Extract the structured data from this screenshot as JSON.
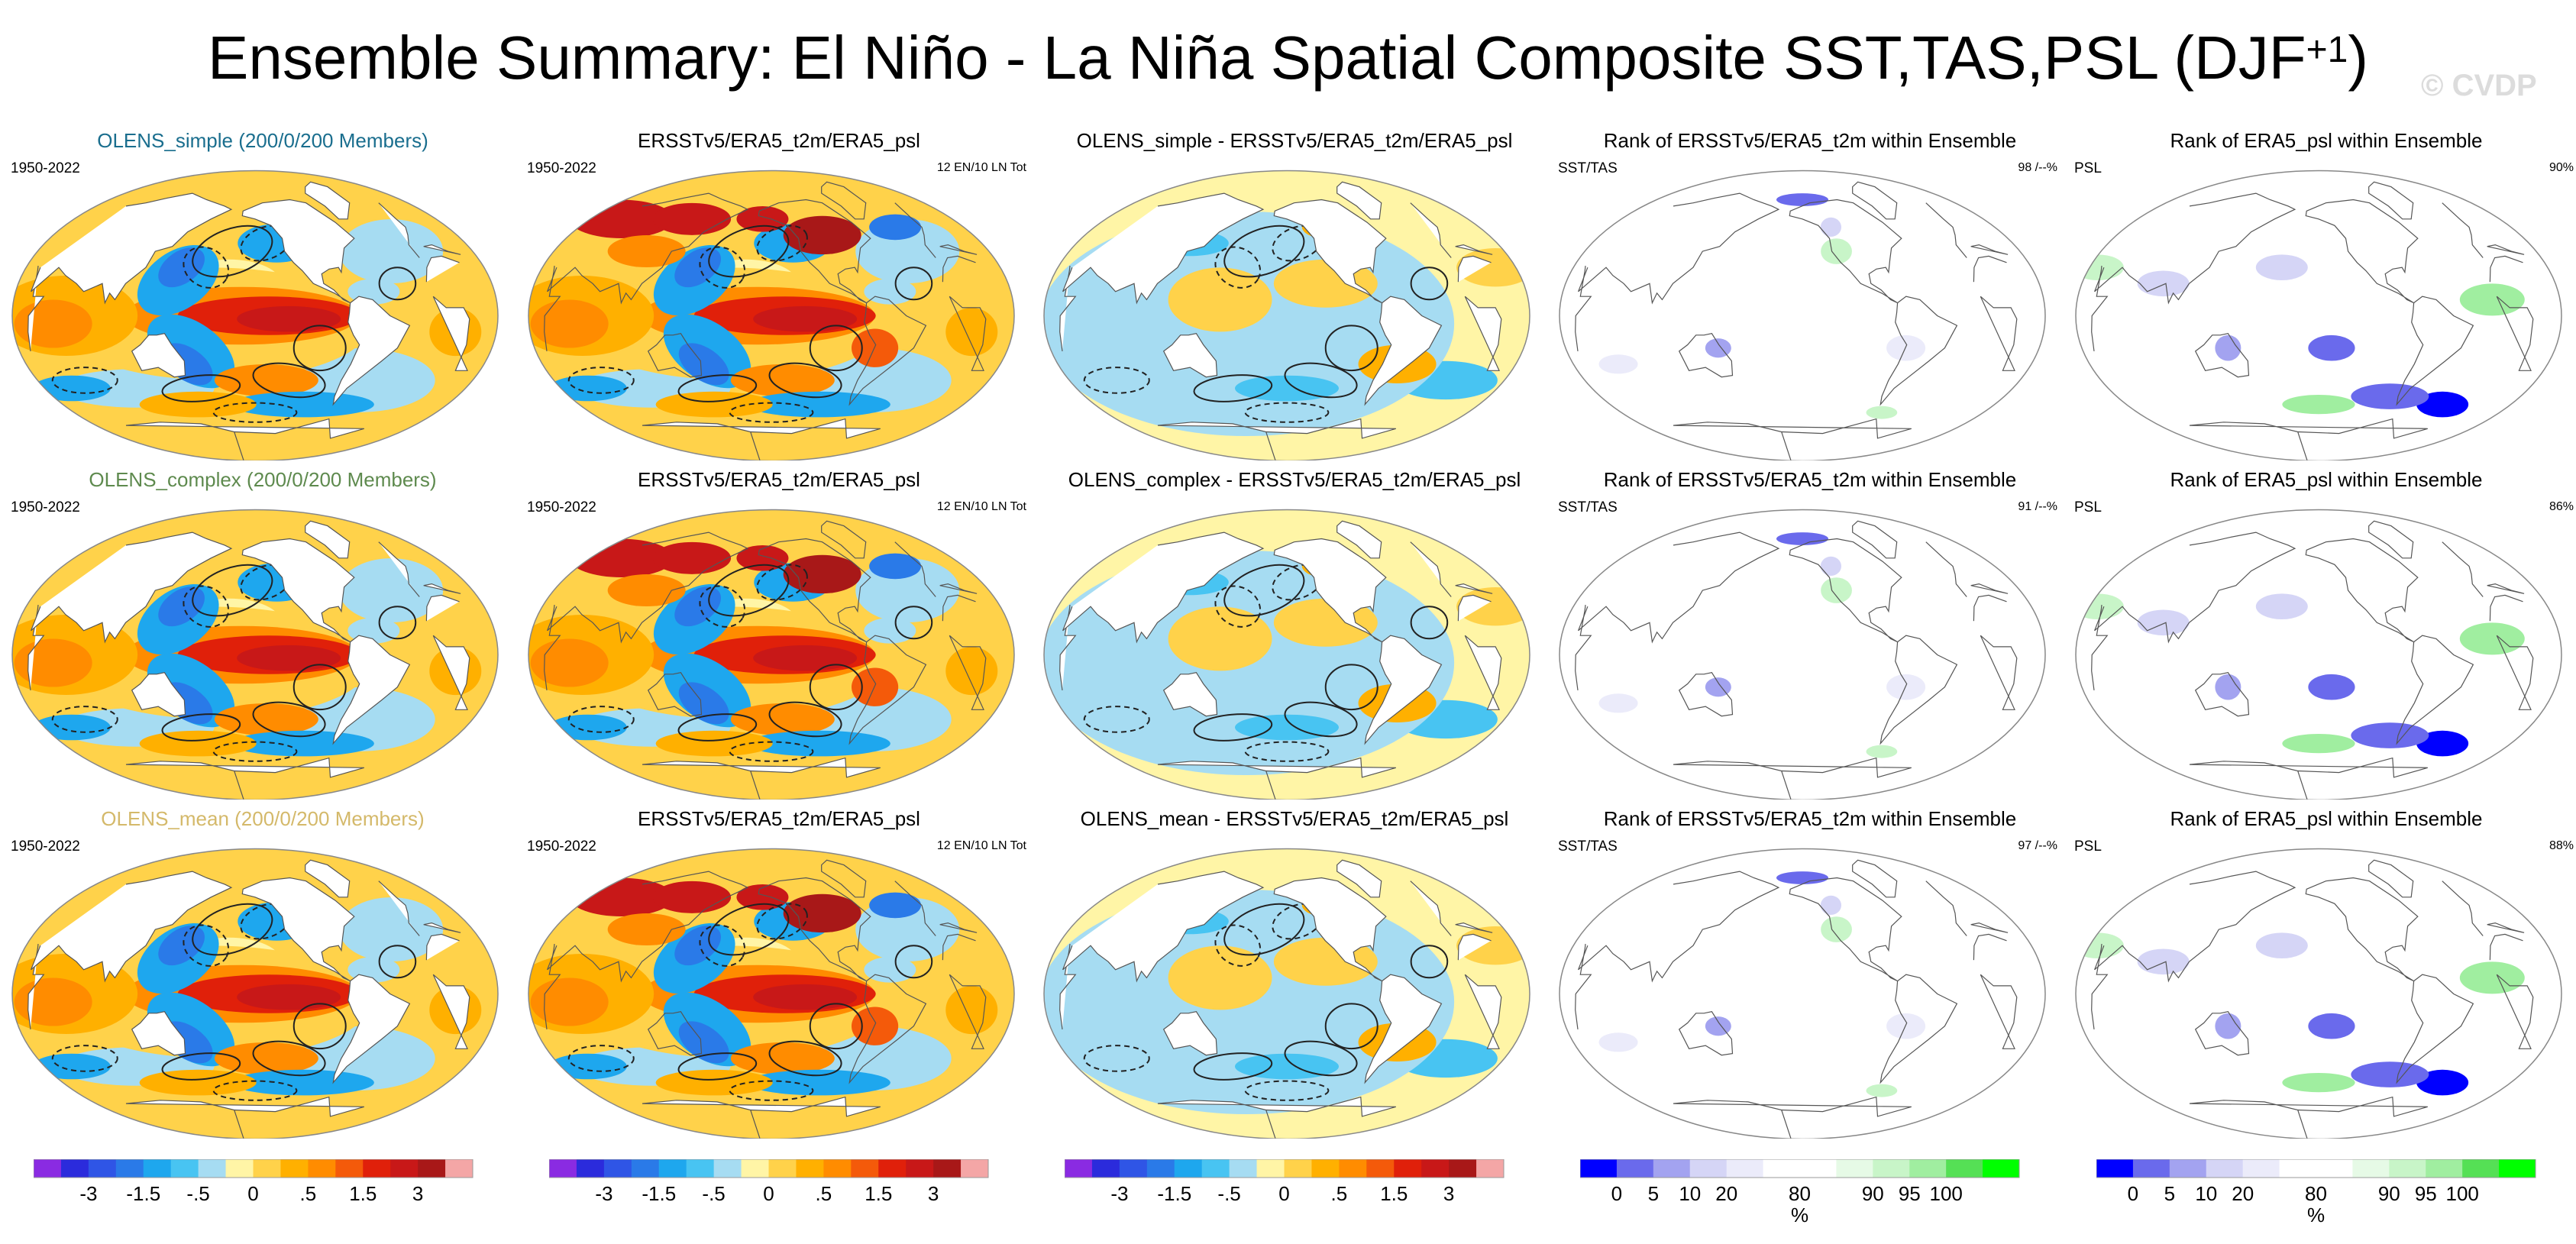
{
  "title_main": "Ensemble Summary: El Niño - La Niña Spatial Composite SST,TAS,PSL (DJF",
  "title_sup": "+1",
  "title_close": ")",
  "watermark": "© CVDP",
  "panels": [
    {
      "title": "OLENS_simple (200/0/200 Members)",
      "title_color": "#1a6e8e",
      "year": "1950-2022",
      "stat": "",
      "kind": "model"
    },
    {
      "title": "ERSSTv5/ERA5_t2m/ERA5_psl",
      "title_color": "#000000",
      "year": "1950-2022",
      "stat": "12 EN/10 LN Tot",
      "kind": "obs"
    },
    {
      "title": "OLENS_simple - ERSSTv5/ERA5_t2m/ERA5_psl",
      "title_color": "#000000",
      "year": "",
      "stat": "",
      "kind": "diff"
    },
    {
      "title": "Rank of ERSSTv5/ERA5_t2m within Ensemble",
      "title_color": "#000000",
      "year": "SST/TAS",
      "stat": "98 /--%",
      "kind": "rank_sst"
    },
    {
      "title": "Rank of ERA5_psl within Ensemble",
      "title_color": "#000000",
      "year": "PSL",
      "stat": "90%",
      "kind": "rank_psl"
    },
    {
      "title": "OLENS_complex (200/0/200 Members)",
      "title_color": "#5e8a4e",
      "year": "1950-2022",
      "stat": "",
      "kind": "model"
    },
    {
      "title": "ERSSTv5/ERA5_t2m/ERA5_psl",
      "title_color": "#000000",
      "year": "1950-2022",
      "stat": "12 EN/10 LN Tot",
      "kind": "obs"
    },
    {
      "title": "OLENS_complex - ERSSTv5/ERA5_t2m/ERA5_psl",
      "title_color": "#000000",
      "year": "",
      "stat": "",
      "kind": "diff"
    },
    {
      "title": "Rank of ERSSTv5/ERA5_t2m within Ensemble",
      "title_color": "#000000",
      "year": "SST/TAS",
      "stat": "91 /--%",
      "kind": "rank_sst"
    },
    {
      "title": "Rank of ERA5_psl within Ensemble",
      "title_color": "#000000",
      "year": "PSL",
      "stat": "86%",
      "kind": "rank_psl"
    },
    {
      "title": "OLENS_mean (200/0/200 Members)",
      "title_color": "#d4b96a",
      "year": "1950-2022",
      "stat": "",
      "kind": "model"
    },
    {
      "title": "ERSSTv5/ERA5_t2m/ERA5_psl",
      "title_color": "#000000",
      "year": "1950-2022",
      "stat": "12 EN/10 LN Tot",
      "kind": "obs"
    },
    {
      "title": "OLENS_mean - ERSSTv5/ERA5_t2m/ERA5_psl",
      "title_color": "#000000",
      "year": "",
      "stat": "",
      "kind": "diff"
    },
    {
      "title": "Rank of ERSSTv5/ERA5_t2m within Ensemble",
      "title_color": "#000000",
      "year": "SST/TAS",
      "stat": "97 /--%",
      "kind": "rank_sst"
    },
    {
      "title": "Rank of ERA5_psl within Ensemble",
      "title_color": "#000000",
      "year": "PSL",
      "stat": "88%",
      "kind": "rank_psl"
    }
  ],
  "colorbars": [
    {
      "name": "anomaly",
      "colors": [
        "#8a2be2",
        "#2b2bdc",
        "#2f55e6",
        "#2a7ae8",
        "#1ea7ee",
        "#48c4f2",
        "#a6dcf2",
        "#fff5a6",
        "#ffd24a",
        "#ffb000",
        "#ff8c00",
        "#f45a0a",
        "#e0200a",
        "#c81818",
        "#a81818",
        "#f4a6a6"
      ],
      "labels": [
        "-3",
        "-1.5",
        "-.5",
        "0",
        ".5",
        "1.5",
        "3"
      ],
      "label_after_box": [
        2,
        4,
        6,
        8,
        10,
        12,
        14
      ],
      "unit": ""
    },
    {
      "name": "rank",
      "colors": [
        "#0000ff",
        "#6a6aec",
        "#a3a3f0",
        "#d5d5f6",
        "#ebebfa",
        "#ffffff",
        "#ffffff",
        "#e6fae6",
        "#c8f5c8",
        "#a0eea0",
        "#55e055",
        "#00ff00"
      ],
      "labels": [
        "0",
        "5",
        "10",
        "20",
        "80",
        "90",
        "95",
        "100"
      ],
      "label_after_box": [
        1,
        2,
        3,
        4,
        6,
        8,
        9,
        10
      ],
      "unit": "%"
    }
  ]
}
